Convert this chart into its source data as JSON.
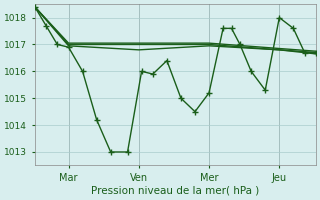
{
  "background_color": "#d8eeee",
  "grid_color": "#aacccc",
  "line_color": "#1a5e1a",
  "marker_color": "#1a5e1a",
  "text_color": "#1a5e1a",
  "xlabel": "Pression niveau de la mer( hPa )",
  "ylim": [
    1012.5,
    1018.5
  ],
  "yticks": [
    1013,
    1014,
    1015,
    1016,
    1017,
    1018
  ],
  "xtick_labels": [
    "Mar",
    "Ven",
    "Mer",
    "Jeu"
  ],
  "xtick_positions": [
    0.12,
    0.37,
    0.62,
    0.87
  ],
  "series1_x": [
    0.0,
    0.04,
    0.08,
    0.12,
    0.17,
    0.22,
    0.27,
    0.33,
    0.38,
    0.42,
    0.47,
    0.52,
    0.57,
    0.62,
    0.67,
    0.7,
    0.73,
    0.77,
    0.82,
    0.87,
    0.92,
    0.96,
    1.0
  ],
  "series1_y": [
    1018.4,
    1017.7,
    1017.0,
    1016.9,
    1016.0,
    1014.2,
    1013.0,
    1013.0,
    1016.0,
    1015.9,
    1016.4,
    1015.0,
    1014.5,
    1015.2,
    1017.6,
    1017.6,
    1017.0,
    1016.0,
    1015.3,
    1018.0,
    1017.6,
    1016.7,
    1016.7
  ],
  "series2_x": [
    0.0,
    0.12,
    0.62,
    0.87,
    1.0
  ],
  "series2_y": [
    1018.4,
    1017.0,
    1017.0,
    1016.8,
    1016.7
  ],
  "series3_x": [
    0.0,
    0.12,
    0.62,
    0.87,
    1.0
  ],
  "series3_y": [
    1018.4,
    1017.05,
    1017.05,
    1016.85,
    1016.75
  ],
  "series4_x": [
    0.0,
    0.12,
    0.37,
    0.62,
    0.87,
    1.0
  ],
  "series4_y": [
    1018.4,
    1016.95,
    1016.8,
    1016.95,
    1016.8,
    1016.65
  ]
}
